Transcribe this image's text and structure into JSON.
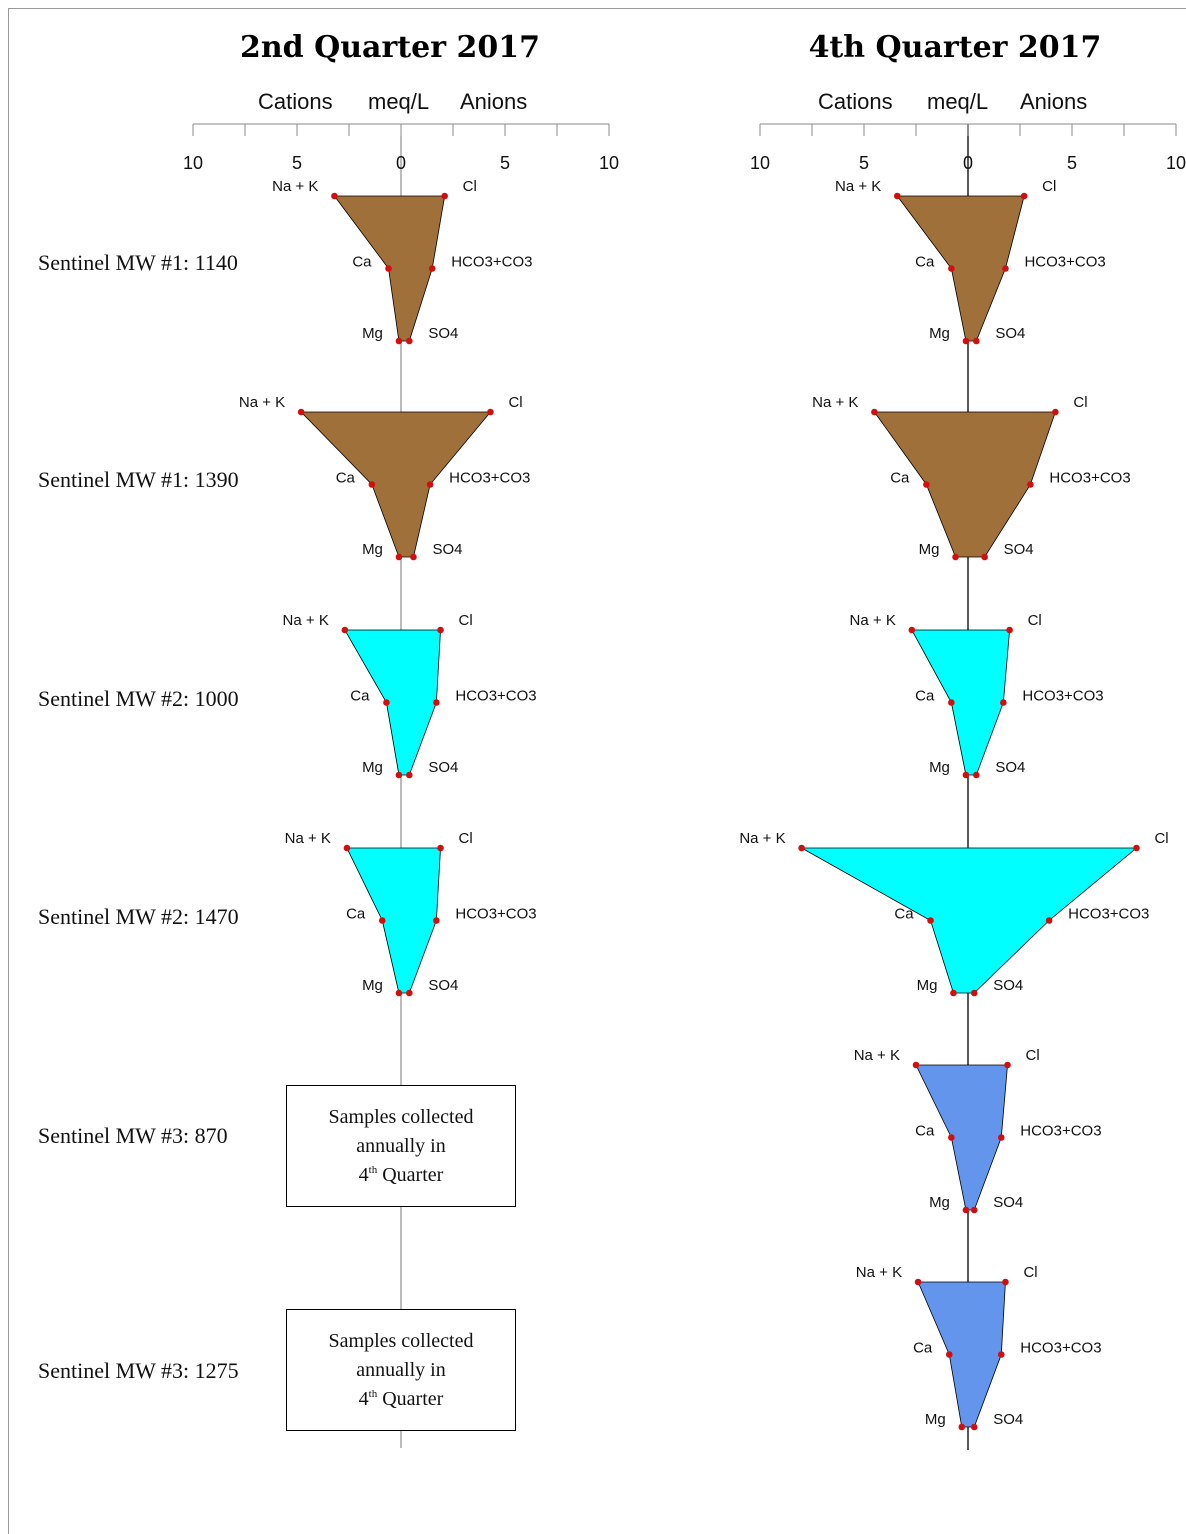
{
  "chart_data": {
    "type": "stiff",
    "axis": {
      "left_word": "Cations",
      "center_word": "meq/L",
      "right_word": "Anions",
      "tick_labels": [
        "10",
        "5",
        "0",
        "5",
        "10"
      ],
      "range": [
        -10,
        10
      ]
    },
    "ion_labels": {
      "cation_top": "Na + K",
      "cation_mid": "Ca",
      "cation_bottom": "Mg",
      "anion_top": "Cl",
      "anion_mid": "HCO3+CO3",
      "anion_bottom": "SO4"
    },
    "rows": [
      {
        "label": "Sentinel MW #1: 1140"
      },
      {
        "label": "Sentinel MW #1: 1390"
      },
      {
        "label": "Sentinel MW #2: 1000"
      },
      {
        "label": "Sentinel MW #2: 1470"
      },
      {
        "label": "Sentinel MW #3: 870"
      },
      {
        "label": "Sentinel MW #3: 1275"
      }
    ],
    "panels": [
      {
        "title": "2nd Quarter 2017",
        "diagrams": [
          {
            "row": 0,
            "color": "#a0703a",
            "na_k": 3.2,
            "cl": 2.1,
            "ca": 0.6,
            "hco3_co3": 1.5,
            "mg": 0.1,
            "so4": 0.4
          },
          {
            "row": 1,
            "color": "#a0703a",
            "na_k": 4.8,
            "cl": 4.3,
            "ca": 1.4,
            "hco3_co3": 1.4,
            "mg": 0.1,
            "so4": 0.6
          },
          {
            "row": 2,
            "color": "#00ffff",
            "na_k": 2.7,
            "cl": 1.9,
            "ca": 0.7,
            "hco3_co3": 1.7,
            "mg": 0.1,
            "so4": 0.4
          },
          {
            "row": 3,
            "color": "#00ffff",
            "na_k": 2.6,
            "cl": 1.9,
            "ca": 0.9,
            "hco3_co3": 1.7,
            "mg": 0.1,
            "so4": 0.4
          }
        ],
        "notes": [
          {
            "row": 4,
            "line1": "Samples collected",
            "line2": "annually in",
            "sup_base": "4",
            "sup": "th",
            "line3_rest": " Quarter"
          },
          {
            "row": 5,
            "line1": "Samples collected",
            "line2": "annually in",
            "sup_base": "4",
            "sup": "th",
            "line3_rest": " Quarter"
          }
        ]
      },
      {
        "title": "4th Quarter 2017",
        "diagrams": [
          {
            "row": 0,
            "color": "#a0703a",
            "na_k": 3.4,
            "cl": 2.7,
            "ca": 0.8,
            "hco3_co3": 1.8,
            "mg": 0.1,
            "so4": 0.4
          },
          {
            "row": 1,
            "color": "#a0703a",
            "na_k": 4.5,
            "cl": 4.2,
            "ca": 2.0,
            "hco3_co3": 3.0,
            "mg": 0.6,
            "so4": 0.8
          },
          {
            "row": 2,
            "color": "#00ffff",
            "na_k": 2.7,
            "cl": 2.0,
            "ca": 0.8,
            "hco3_co3": 1.7,
            "mg": 0.1,
            "so4": 0.4
          },
          {
            "row": 3,
            "color": "#00ffff",
            "na_k": 8.0,
            "cl": 8.1,
            "ca": 1.8,
            "hco3_co3": 3.9,
            "mg": 0.7,
            "so4": 0.3
          },
          {
            "row": 4,
            "color": "#6495ed",
            "na_k": 2.5,
            "cl": 1.9,
            "ca": 0.8,
            "hco3_co3": 1.6,
            "mg": 0.1,
            "so4": 0.3
          },
          {
            "row": 5,
            "color": "#6495ed",
            "na_k": 2.4,
            "cl": 1.8,
            "ca": 0.9,
            "hco3_co3": 1.6,
            "mg": 0.3,
            "so4": 0.3
          }
        ],
        "notes": []
      }
    ]
  }
}
